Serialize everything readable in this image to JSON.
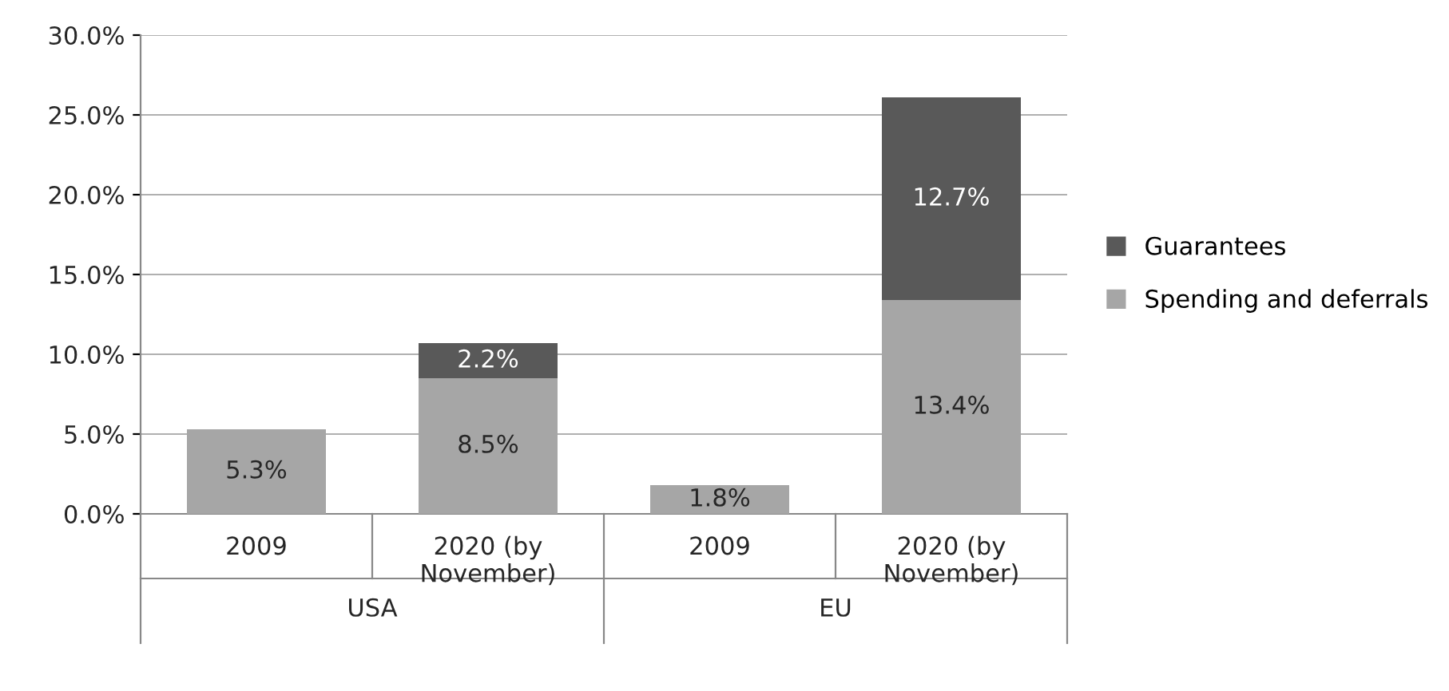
{
  "chart_data": {
    "type": "bar",
    "stacked": true,
    "categories": [
      "2009",
      "2020 (by November)",
      "2009",
      "2020 (by November)"
    ],
    "series": [
      {
        "name": "Spending and deferrals",
        "color": "#a6a6a6",
        "values": [
          5.3,
          8.5,
          1.8,
          13.4
        ],
        "value_labels": [
          "5.3%",
          "8.5%",
          "1.8%",
          "13.4%"
        ]
      },
      {
        "name": "Guarantees",
        "color": "#595959",
        "values": [
          null,
          2.2,
          null,
          12.7
        ],
        "value_labels": [
          null,
          "2.2%",
          null,
          "12.7%"
        ]
      }
    ],
    "ylim": [
      0,
      30
    ],
    "yticks": [
      {
        "value": 0,
        "label": "0.0%"
      },
      {
        "value": 5,
        "label": "5.0%"
      },
      {
        "value": 10,
        "label": "10.0%"
      },
      {
        "value": 15,
        "label": "15.0%"
      },
      {
        "value": 20,
        "label": "20.0%"
      },
      {
        "value": 25,
        "label": "25.0%"
      },
      {
        "value": 30,
        "label": "30.0%"
      }
    ],
    "grid": "y",
    "legend": "right",
    "annotations": [
      "USA",
      "EU"
    ]
  }
}
